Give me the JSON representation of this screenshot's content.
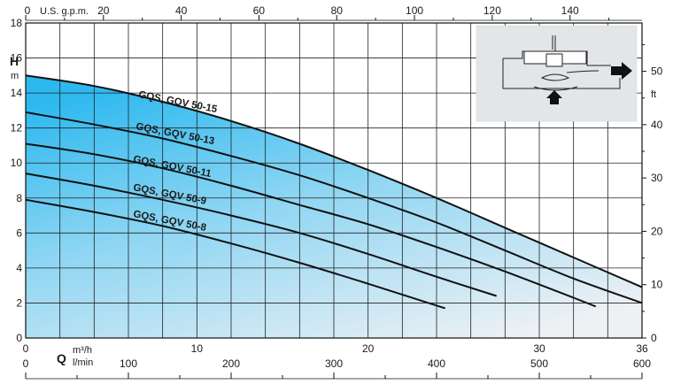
{
  "chart_data": {
    "type": "line",
    "title": "",
    "xlabel": "Q",
    "ylabel": "H",
    "xlim": [
      0,
      36
    ],
    "ylim": [
      0,
      18
    ],
    "grid": true,
    "x_unit_primary": "m³/h",
    "x_unit_secondary": "l/min",
    "x_unit_top": "U.S. g.p.m.",
    "y_unit_left": "m",
    "y_unit_right": "ft",
    "x_ticks": [
      0,
      10,
      20,
      30,
      36
    ],
    "x_ticks_lmin": [
      0,
      100,
      200,
      300,
      400,
      500,
      600
    ],
    "x_ticks_gpm": [
      0,
      20,
      40,
      60,
      80,
      100,
      120,
      140
    ],
    "y_ticks_m": [
      0,
      2,
      4,
      6,
      8,
      10,
      12,
      14,
      16,
      18
    ],
    "y_ticks_ft": [
      0,
      10,
      20,
      30,
      40,
      50
    ],
    "series": [
      {
        "name": "GQS, GQV 50-15",
        "x": [
          0,
          4,
          8,
          12,
          16,
          20,
          24,
          28,
          32,
          36
        ],
        "y": [
          15.0,
          14.4,
          13.5,
          12.4,
          11.1,
          9.6,
          8.0,
          6.3,
          4.6,
          2.9
        ]
      },
      {
        "name": "GQS, GQV 50-13",
        "x": [
          0,
          4,
          8,
          12,
          16,
          20,
          24,
          28,
          32,
          36
        ],
        "y": [
          12.9,
          12.2,
          11.4,
          10.4,
          9.3,
          8.0,
          6.6,
          5.0,
          3.4,
          2.0
        ]
      },
      {
        "name": "GQS, GQV 50-11",
        "x": [
          0,
          4,
          8,
          12,
          16,
          20,
          24,
          28,
          32,
          33.3
        ],
        "y": [
          11.1,
          10.5,
          9.7,
          8.7,
          7.6,
          6.5,
          5.2,
          3.8,
          2.3,
          1.8
        ]
      },
      {
        "name": "GQS, GQV 50-9",
        "x": [
          0,
          4,
          8,
          12,
          16,
          20,
          24,
          27.5
        ],
        "y": [
          9.4,
          8.7,
          7.9,
          7.0,
          6.0,
          4.8,
          3.5,
          2.4
        ]
      },
      {
        "name": "GQS, GQV 50-8",
        "x": [
          0,
          4,
          8,
          12,
          16,
          20,
          24.5
        ],
        "y": [
          7.9,
          7.2,
          6.4,
          5.4,
          4.3,
          3.1,
          1.7
        ]
      }
    ],
    "colors": {
      "fill_top": "#3cc3f0",
      "fill_bottom": "#e8edf2",
      "curve": "#111111",
      "grid": "#222222"
    },
    "inset": "pump-schematic"
  }
}
